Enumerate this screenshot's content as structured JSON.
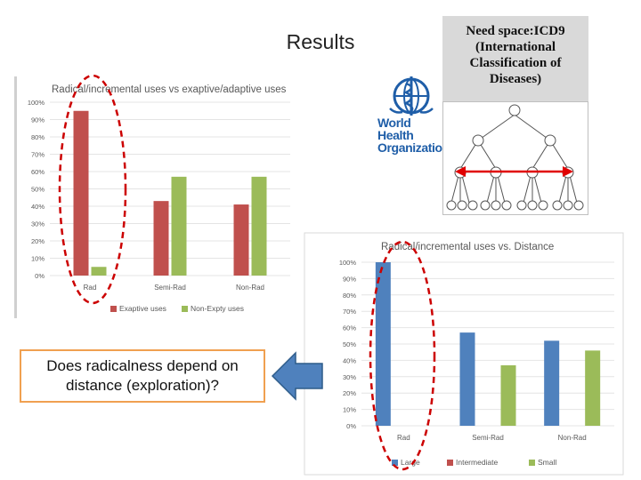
{
  "slide": {
    "title": "Results",
    "need_space_note": "Need space:ICD9 (International Classification of Diseases)",
    "question": "Does radicalness depend on distance (exploration)?",
    "logo_text_line1": "World Health",
    "logo_text_line2": "Organization"
  },
  "colors": {
    "red": "#c0504d",
    "green": "#9bbb59",
    "blue": "#4f81bd",
    "arrow_blue": "#4f81bd",
    "highlight_ellipse": "#cc0000"
  },
  "icons": [
    "who-logo-icon",
    "tree-diagram-icon",
    "left-arrow-icon",
    "double-arrow-icon"
  ],
  "chart_data": [
    {
      "type": "bar",
      "title": "Radical/incremental uses vs exaptive/adaptive uses",
      "categories": [
        "Rad",
        "Semi-Rad",
        "Non-Rad"
      ],
      "series": [
        {
          "name": "Exaptive uses",
          "values": [
            95,
            43,
            41
          ]
        },
        {
          "name": "Non-Expty uses",
          "values": [
            5,
            57,
            57
          ]
        }
      ],
      "y_ticks": [
        "0%",
        "10%",
        "20%",
        "30%",
        "40%",
        "50%",
        "60%",
        "70%",
        "80%",
        "90%",
        "100%"
      ],
      "ylim": [
        0,
        100
      ],
      "legend": "bottom",
      "grid": true
    },
    {
      "type": "bar",
      "title": "Radical/incremental uses vs. Distance",
      "categories": [
        "Rad",
        "Semi-Rad",
        "Non-Rad"
      ],
      "series": [
        {
          "name": "Large",
          "values": [
            100,
            57,
            52
          ]
        },
        {
          "name": "Intermediate",
          "values": [
            0,
            0,
            0
          ]
        },
        {
          "name": "Small",
          "values": [
            0,
            37,
            46
          ]
        }
      ],
      "y_ticks": [
        "0%",
        "10%",
        "20%",
        "30%",
        "40%",
        "50%",
        "60%",
        "70%",
        "80%",
        "90%",
        "100%"
      ],
      "ylim": [
        0,
        100
      ],
      "legend": "bottom",
      "grid": true
    }
  ]
}
